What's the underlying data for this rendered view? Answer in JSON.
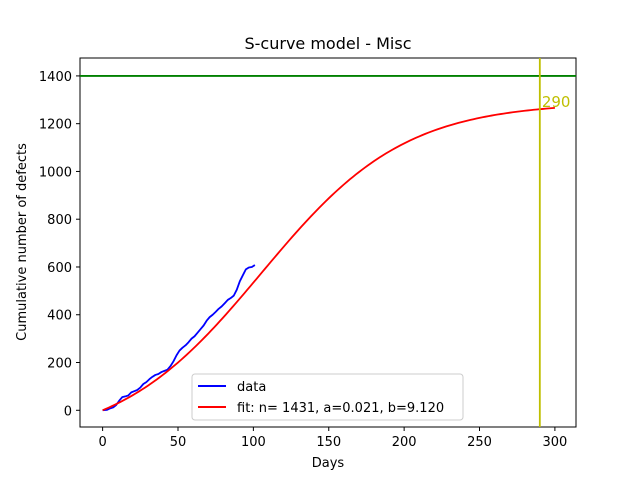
{
  "chart_data": {
    "type": "line",
    "title": "S-curve model - Misc",
    "xlabel": "Days",
    "ylabel": "Cumulative number of defects",
    "xlim": [
      -15,
      314
    ],
    "ylim": [
      -70,
      1475
    ],
    "xticks": [
      0,
      50,
      100,
      150,
      200,
      250,
      300
    ],
    "xtick_labels": [
      "0",
      "50",
      "100",
      "150",
      "200",
      "250",
      "300"
    ],
    "yticks": [
      0,
      200,
      400,
      600,
      800,
      1000,
      1200,
      1400
    ],
    "ytick_labels": [
      "0",
      "200",
      "400",
      "600",
      "800",
      "1000",
      "1200",
      "1400"
    ],
    "grid": false,
    "legend_position": "lower center",
    "series": [
      {
        "name": "data",
        "color": "#0000ff",
        "x": [
          0,
          3,
          5,
          7,
          9,
          11,
          13,
          15,
          17,
          19,
          21,
          23,
          25,
          27,
          29,
          31,
          33,
          35,
          37,
          39,
          41,
          43,
          45,
          47,
          49,
          51,
          53,
          55,
          57,
          59,
          61,
          63,
          65,
          67,
          69,
          71,
          73,
          75,
          77,
          79,
          81,
          83,
          85,
          87,
          89,
          91,
          93,
          95,
          97,
          99,
          101
        ],
        "y": [
          0,
          2,
          8,
          12,
          22,
          40,
          55,
          58,
          62,
          75,
          80,
          85,
          95,
          110,
          118,
          130,
          140,
          148,
          152,
          160,
          165,
          170,
          185,
          205,
          230,
          250,
          262,
          272,
          285,
          300,
          310,
          325,
          340,
          355,
          375,
          390,
          400,
          412,
          425,
          435,
          448,
          462,
          470,
          480,
          505,
          540,
          565,
          590,
          598,
          600,
          608
        ]
      },
      {
        "name": "fit: n= 1431, a=0.021, b=9.120",
        "color": "#ff0000",
        "model": {
          "n": 1431,
          "a": 0.021,
          "b": 9.12
        },
        "x_range": [
          0,
          300
        ]
      }
    ],
    "hlines": [
      {
        "y": 1400,
        "color": "#008000"
      }
    ],
    "vlines": [
      {
        "x": 290,
        "color": "#bfbf00"
      }
    ],
    "annotations": [
      {
        "text": "290",
        "x": 290,
        "y": 1290,
        "color": "#bfbf00"
      }
    ]
  }
}
